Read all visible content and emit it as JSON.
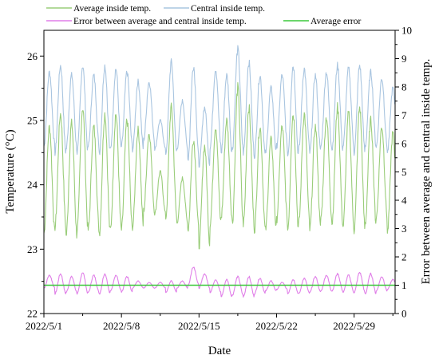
{
  "chart_data": {
    "type": "line",
    "title": "",
    "xlabel": "Date",
    "ylabel": "Temperature (°C)",
    "y2label": "Error between average and central inside temp.",
    "x_start_day": 1,
    "x_end_day": 32.7,
    "xticks": [
      {
        "day": 1,
        "label": "2022/5/1"
      },
      {
        "day": 8,
        "label": "2022/5/8"
      },
      {
        "day": 15,
        "label": "2022/5/15"
      },
      {
        "day": 22,
        "label": "2022/5/22"
      },
      {
        "day": 29,
        "label": "2022/5/29"
      }
    ],
    "ylim": [
      22,
      26.4
    ],
    "yticks": [
      "22",
      "23",
      "24",
      "25",
      "26"
    ],
    "y2lim": [
      0,
      10
    ],
    "y2ticks": [
      "0",
      "1",
      "2",
      "3",
      "4",
      "5",
      "6",
      "7",
      "8",
      "9",
      "10"
    ],
    "grid": false,
    "legend_position": "top",
    "series": [
      {
        "name": "Average inside temp.",
        "axis": "left",
        "color": "#9acd7a",
        "daily": [
          {
            "day": 1,
            "min": 23.25,
            "max": 24.9
          },
          {
            "day": 2,
            "min": 23.35,
            "max": 25.1
          },
          {
            "day": 3,
            "min": 23.2,
            "max": 24.95
          },
          {
            "day": 4,
            "min": 23.3,
            "max": 25.2
          },
          {
            "day": 5,
            "min": 23.3,
            "max": 24.9
          },
          {
            "day": 6,
            "min": 23.25,
            "max": 25.1
          },
          {
            "day": 7,
            "min": 23.3,
            "max": 25.1
          },
          {
            "day": 8,
            "min": 23.3,
            "max": 25.0
          },
          {
            "day": 9,
            "min": 23.35,
            "max": 24.85
          },
          {
            "day": 10,
            "min": 23.6,
            "max": 24.8
          },
          {
            "day": 11,
            "min": 23.55,
            "max": 24.2
          },
          {
            "day": 12,
            "min": 23.5,
            "max": 25.2
          },
          {
            "day": 13,
            "min": 23.4,
            "max": 24.1
          },
          {
            "day": 14,
            "min": 23.3,
            "max": 24.7
          },
          {
            "day": 15,
            "min": 23.05,
            "max": 24.6
          },
          {
            "day": 16,
            "min": 23.4,
            "max": 24.9
          },
          {
            "day": 17,
            "min": 23.5,
            "max": 25.0
          },
          {
            "day": 18,
            "min": 23.4,
            "max": 25.5
          },
          {
            "day": 19,
            "min": 23.4,
            "max": 25.2
          },
          {
            "day": 20,
            "min": 23.3,
            "max": 24.9
          },
          {
            "day": 21,
            "min": 23.3,
            "max": 24.7
          },
          {
            "day": 22,
            "min": 23.45,
            "max": 24.9
          },
          {
            "day": 23,
            "min": 23.3,
            "max": 25.1
          },
          {
            "day": 24,
            "min": 23.4,
            "max": 25.1
          },
          {
            "day": 25,
            "min": 23.3,
            "max": 24.9
          },
          {
            "day": 26,
            "min": 23.5,
            "max": 25.05
          },
          {
            "day": 27,
            "min": 23.4,
            "max": 25.2
          },
          {
            "day": 28,
            "min": 23.35,
            "max": 25.1
          },
          {
            "day": 29,
            "min": 23.3,
            "max": 25.2
          },
          {
            "day": 30,
            "min": 23.4,
            "max": 25.0
          },
          {
            "day": 31,
            "min": 23.5,
            "max": 24.9
          },
          {
            "day": 32,
            "min": 23.25,
            "max": 24.8
          }
        ]
      },
      {
        "name": "Central inside temp.",
        "axis": "left",
        "color": "#a9c5e0",
        "daily": [
          {
            "day": 1,
            "min": 24.6,
            "max": 25.75
          },
          {
            "day": 2,
            "min": 24.5,
            "max": 25.85
          },
          {
            "day": 3,
            "min": 24.55,
            "max": 25.7
          },
          {
            "day": 4,
            "min": 24.5,
            "max": 25.85
          },
          {
            "day": 5,
            "min": 24.6,
            "max": 25.7
          },
          {
            "day": 6,
            "min": 24.5,
            "max": 25.85
          },
          {
            "day": 7,
            "min": 24.55,
            "max": 25.8
          },
          {
            "day": 8,
            "min": 24.6,
            "max": 25.75
          },
          {
            "day": 9,
            "min": 24.55,
            "max": 25.6
          },
          {
            "day": 10,
            "min": 24.7,
            "max": 25.6
          },
          {
            "day": 11,
            "min": 24.55,
            "max": 25.0
          },
          {
            "day": 12,
            "min": 24.5,
            "max": 25.9
          },
          {
            "day": 13,
            "min": 24.55,
            "max": 25.3
          },
          {
            "day": 14,
            "min": 24.4,
            "max": 25.85
          },
          {
            "day": 15,
            "min": 24.3,
            "max": 25.2
          },
          {
            "day": 16,
            "min": 24.6,
            "max": 25.8
          },
          {
            "day": 17,
            "min": 24.5,
            "max": 25.7
          },
          {
            "day": 18,
            "min": 24.55,
            "max": 26.1
          },
          {
            "day": 19,
            "min": 24.5,
            "max": 25.9
          },
          {
            "day": 20,
            "min": 24.45,
            "max": 25.7
          },
          {
            "day": 21,
            "min": 24.5,
            "max": 25.5
          },
          {
            "day": 22,
            "min": 24.6,
            "max": 25.7
          },
          {
            "day": 23,
            "min": 24.45,
            "max": 25.85
          },
          {
            "day": 24,
            "min": 24.55,
            "max": 25.8
          },
          {
            "day": 25,
            "min": 24.5,
            "max": 25.7
          },
          {
            "day": 26,
            "min": 24.6,
            "max": 25.75
          },
          {
            "day": 27,
            "min": 24.55,
            "max": 25.85
          },
          {
            "day": 28,
            "min": 24.6,
            "max": 25.8
          },
          {
            "day": 29,
            "min": 24.5,
            "max": 25.85
          },
          {
            "day": 30,
            "min": 24.6,
            "max": 25.75
          },
          {
            "day": 31,
            "min": 24.6,
            "max": 25.65
          },
          {
            "day": 32,
            "min": 24.5,
            "max": 25.5
          }
        ]
      },
      {
        "name": "Error between average and central inside temp.",
        "axis": "right",
        "color": "#e07fe8",
        "daily": [
          {
            "day": 1,
            "min": 0.9,
            "max": 1.35
          },
          {
            "day": 2,
            "min": 0.7,
            "max": 1.4
          },
          {
            "day": 3,
            "min": 0.75,
            "max": 1.3
          },
          {
            "day": 4,
            "min": 0.7,
            "max": 1.45
          },
          {
            "day": 5,
            "min": 0.75,
            "max": 1.35
          },
          {
            "day": 6,
            "min": 0.7,
            "max": 1.4
          },
          {
            "day": 7,
            "min": 0.8,
            "max": 1.35
          },
          {
            "day": 8,
            "min": 0.75,
            "max": 1.3
          },
          {
            "day": 9,
            "min": 0.9,
            "max": 1.15
          },
          {
            "day": 10,
            "min": 0.9,
            "max": 1.1
          },
          {
            "day": 11,
            "min": 0.9,
            "max": 1.1
          },
          {
            "day": 12,
            "min": 0.75,
            "max": 1.15
          },
          {
            "day": 13,
            "min": 0.9,
            "max": 1.15
          },
          {
            "day": 14,
            "min": 1.0,
            "max": 1.65
          },
          {
            "day": 15,
            "min": 0.9,
            "max": 1.4
          },
          {
            "day": 16,
            "min": 0.75,
            "max": 1.2
          },
          {
            "day": 17,
            "min": 0.6,
            "max": 1.2
          },
          {
            "day": 18,
            "min": 0.65,
            "max": 1.3
          },
          {
            "day": 19,
            "min": 0.6,
            "max": 1.3
          },
          {
            "day": 20,
            "min": 0.7,
            "max": 1.25
          },
          {
            "day": 21,
            "min": 0.8,
            "max": 1.15
          },
          {
            "day": 22,
            "min": 0.85,
            "max": 1.1
          },
          {
            "day": 23,
            "min": 0.7,
            "max": 1.2
          },
          {
            "day": 24,
            "min": 0.7,
            "max": 1.25
          },
          {
            "day": 25,
            "min": 0.75,
            "max": 1.3
          },
          {
            "day": 26,
            "min": 0.8,
            "max": 1.35
          },
          {
            "day": 27,
            "min": 0.8,
            "max": 1.4
          },
          {
            "day": 28,
            "min": 0.75,
            "max": 1.35
          },
          {
            "day": 29,
            "min": 0.75,
            "max": 1.45
          },
          {
            "day": 30,
            "min": 0.7,
            "max": 1.4
          },
          {
            "day": 31,
            "min": 0.8,
            "max": 1.3
          },
          {
            "day": 32,
            "min": 0.85,
            "max": 1.2
          }
        ]
      },
      {
        "name": "Average error",
        "axis": "right",
        "color": "#3cc83c",
        "constant": 1.0
      }
    ]
  }
}
